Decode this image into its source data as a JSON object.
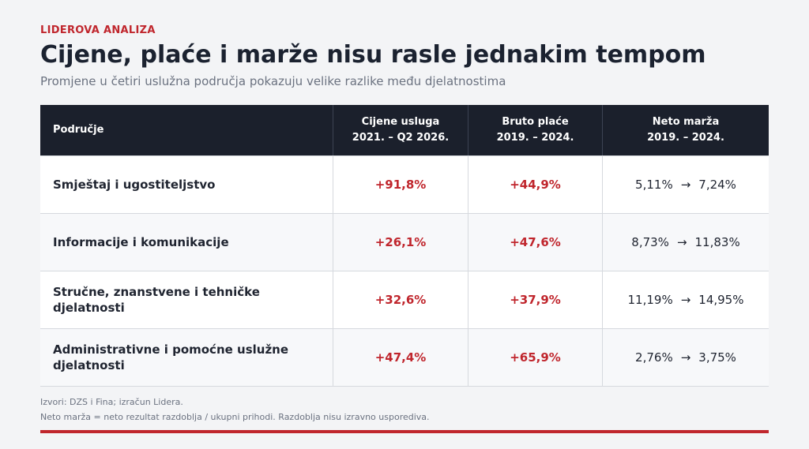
{
  "kicker": "LIDEROVA ANALIZA",
  "title": "Cijene, plaće i marže nisu rasle jednakim tempom",
  "subtitle": "Promjene u četiri uslužna područja pokazuju velike razlike među djelatnostima",
  "table": {
    "headers": [
      {
        "line1": "Područje",
        "line2": ""
      },
      {
        "line1": "Cijene usluga",
        "line2": "2021. – Q2 2026."
      },
      {
        "line1": "Bruto plaće",
        "line2": "2019. – 2024."
      },
      {
        "line1": "Neto marža",
        "line2": "2019. – 2024."
      }
    ],
    "rows": [
      {
        "area": "Smještaj i ugostiteljstvo",
        "prices": "+91,8%",
        "wages": "+44,9%",
        "margin_from": "5,11%",
        "margin_to": "7,24%"
      },
      {
        "area": "Informacije i komunikacije",
        "prices": "+26,1%",
        "wages": "+47,6%",
        "margin_from": "8,73%",
        "margin_to": "11,83%"
      },
      {
        "area": "Stručne, znanstvene i tehničke djelatnosti",
        "prices": "+32,6%",
        "wages": "+37,9%",
        "margin_from": "11,19%",
        "margin_to": "14,95%"
      },
      {
        "area": "Administrativne i pomoćne uslužne djelatnosti",
        "prices": "+47,4%",
        "wages": "+65,9%",
        "margin_from": "2,76%",
        "margin_to": "3,75%"
      }
    ],
    "arrow": "→"
  },
  "notes": {
    "source": "Izvori: DZS i Fina; izračun Lidera.",
    "definition": "Neto marža = neto rezultat razdoblja / ukupni prihodi. Razdoblja nisu izravno usporediva."
  },
  "colors": {
    "accent": "#c0262d",
    "header_bg": "#1b202c",
    "background": "#f3f4f6"
  }
}
